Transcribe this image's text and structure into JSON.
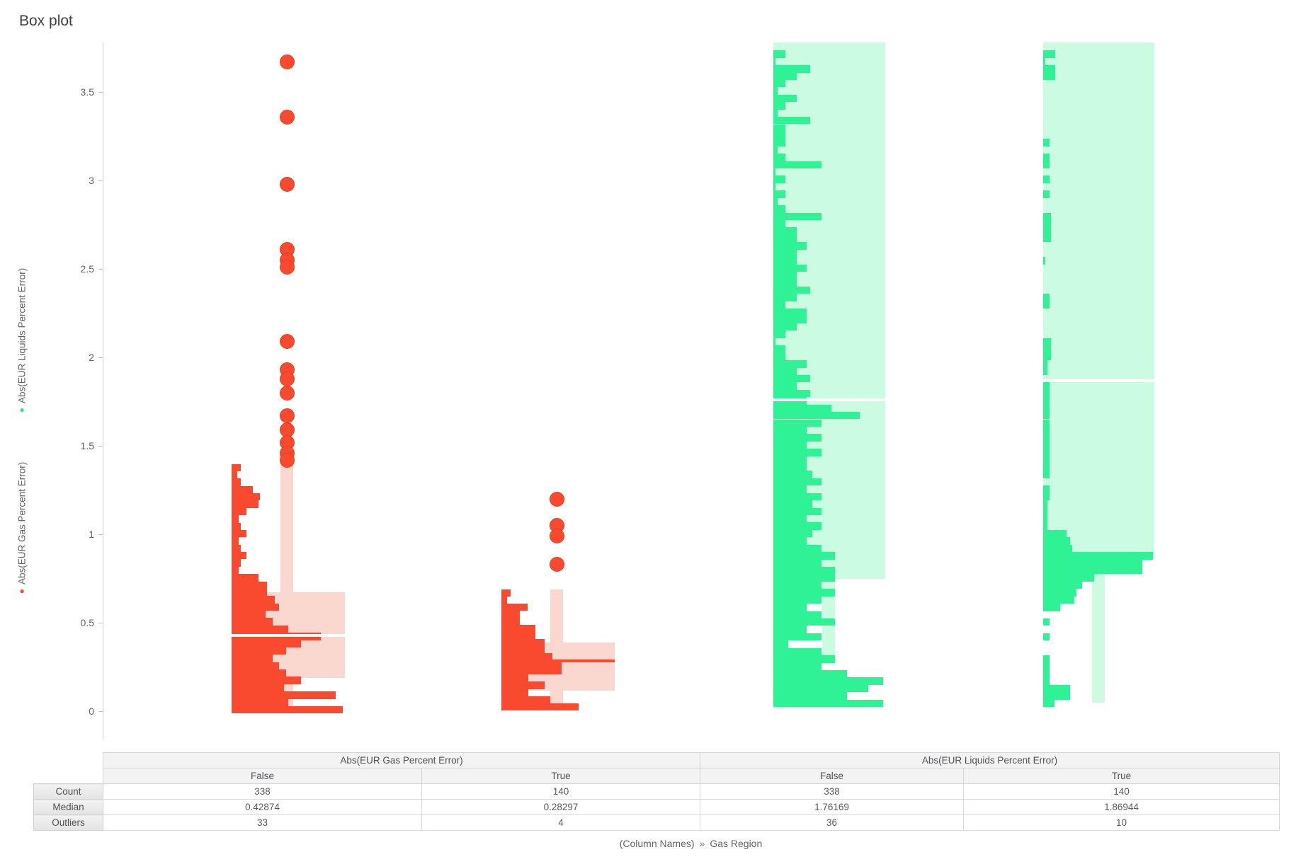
{
  "title": "Box plot",
  "y_axis": {
    "series_labels": [
      {
        "label": "Abs(EUR Liquids Percent Error)",
        "dot_color": "#2ee88a"
      },
      {
        "label": "Abs(EUR Gas Percent Error)",
        "dot_color": "#f94a2f"
      }
    ],
    "ticks": [
      {
        "label": "3.5",
        "value": 3.5
      },
      {
        "label": "3",
        "value": 3
      },
      {
        "label": "2.5",
        "value": 2.5
      },
      {
        "label": "2",
        "value": 2
      },
      {
        "label": "1.5",
        "value": 1.5
      },
      {
        "label": "1",
        "value": 1
      },
      {
        "label": "0.5",
        "value": 0.5
      },
      {
        "label": "0",
        "value": 0
      }
    ]
  },
  "x_axis": {
    "dimension": "(Column Names)",
    "separator": "»",
    "value": "Gas Region"
  },
  "colors": {
    "gas_solid": "#f94a2f",
    "gas_light": "#fad8d0",
    "gas_outline": "#e0401f",
    "liquids_solid": "#2ef293",
    "liquids_light": "#cbfce1",
    "median_white": "#ffffff"
  },
  "chart_data": {
    "type": "boxplot",
    "ylim": [
      0,
      3.78
    ],
    "grid": false,
    "groups": [
      {
        "variable": "Abs(EUR Gas Percent Error)",
        "category": "False",
        "color": "gas",
        "count": 338,
        "median": 0.42874,
        "outlier_count": 33,
        "box": {
          "q1": 0.19,
          "q3": 0.672,
          "whisker_high": 1.43,
          "whisker_low": 0.01
        },
        "median_style": "white",
        "visible_outliers": [
          3.67,
          3.36,
          2.98,
          2.61,
          2.55,
          2.51,
          2.09,
          1.93,
          1.88,
          1.8,
          1.67,
          1.59,
          1.52,
          1.46,
          1.42
        ],
        "hist": {
          "top": 1.398,
          "pitch": 0.0415,
          "lengths": [
            0.08,
            0.05,
            0.08,
            0.19,
            0.25,
            0.24,
            0.13,
            0.06,
            0.08,
            0.13,
            0.06,
            0.08,
            0.13,
            0.08,
            0.06,
            0.24,
            0.31,
            0.31,
            0.38,
            0.42,
            0.3,
            0.36,
            0.5,
            0.79,
            0.61,
            0.48,
            0.36,
            0.42,
            0.48,
            0.61,
            0.46,
            0.92,
            0.5,
            0.98
          ]
        }
      },
      {
        "variable": "Abs(EUR Gas Percent Error)",
        "category": "True",
        "color": "gas",
        "count": 140,
        "median": 0.28297,
        "outlier_count": 4,
        "box": {
          "q1": 0.115,
          "q3": 0.39,
          "whisker_high": 0.69,
          "whisker_low": 0.03
        },
        "median_style": "solid",
        "visible_outliers": [
          1.2,
          1.05,
          0.99,
          0.83
        ],
        "hist": {
          "top": 0.69,
          "pitch": 0.0403,
          "lengths": [
            0.08,
            0.05,
            0.23,
            0.16,
            0.16,
            0.3,
            0.3,
            0.38,
            0.38,
            0.45,
            0.53,
            0.53,
            0.24,
            0.38,
            0.24,
            0.43,
            0.68
          ]
        }
      },
      {
        "variable": "Abs(EUR Liquids Percent Error)",
        "category": "False",
        "color": "liquids",
        "count": 338,
        "median": 1.76169,
        "outlier_count": 36,
        "box": {
          "q1": 0.748,
          "q3": null,
          "whisker_high": null,
          "whisker_low": 0.31
        },
        "median_style": "white",
        "visible_outliers": [],
        "hist": {
          "top": 3.735,
          "pitch": 0.0417,
          "lengths": [
            0.11,
            0.02,
            0.33,
            0.21,
            0.11,
            0.04,
            0.21,
            0.11,
            0.04,
            0.33,
            0.11,
            0.11,
            0.11,
            0.04,
            0.11,
            0.43,
            0.02,
            0.11,
            0.02,
            0.11,
            0.04,
            0.11,
            0.43,
            0.11,
            0.21,
            0.21,
            0.3,
            0.21,
            0.21,
            0.3,
            0.21,
            0.21,
            0.33,
            0.21,
            0.11,
            0.3,
            0.3,
            0.21,
            0.11,
            0.02,
            0.11,
            0.11,
            0.3,
            0.21,
            0.33,
            0.21,
            0.33,
            0.3,
            0.52,
            0.77,
            0.43,
            0.3,
            0.43,
            0.3,
            0.43,
            0.3,
            0.3,
            0.35,
            0.43,
            0.3,
            0.43,
            0.35,
            0.43,
            0.3,
            0.43,
            0.35,
            0.3,
            0.43,
            0.55,
            0.43,
            0.55,
            0.55,
            0.43,
            0.55,
            0.43,
            0.3,
            0.43,
            0.55,
            0.3,
            0.43,
            0.13,
            0.43,
            0.55,
            0.43,
            0.66,
            0.98,
            0.85,
            0.66,
            0.98
          ]
        }
      },
      {
        "variable": "Abs(EUR Liquids Percent Error)",
        "category": "True",
        "color": "liquids",
        "count": 140,
        "median": 1.86944,
        "outlier_count": 10,
        "box": {
          "q1": 0.872,
          "q3": null,
          "whisker_high": null,
          "whisker_low": 0.05
        },
        "median_style": "white",
        "visible_outliers": [],
        "hist": {
          "top": 3.735,
          "pitch": 0.0417,
          "lengths": [
            0.11,
            0.02,
            0.11,
            0.11,
            0,
            0,
            0,
            0,
            0,
            0,
            0,
            0,
            0.06,
            0,
            0.06,
            0.06,
            0,
            0.06,
            0,
            0.06,
            0,
            0,
            0.07,
            0.07,
            0.07,
            0.07,
            0,
            0,
            0.02,
            0,
            0,
            0,
            0,
            0.06,
            0.06,
            0,
            0,
            0,
            0,
            0.07,
            0.07,
            0.07,
            0.04,
            0.04,
            0,
            0.06,
            0.06,
            0.055,
            0.055,
            0.055,
            0.055,
            0.055,
            0.055,
            0.055,
            0.055,
            0.055,
            0.055,
            0.055,
            0,
            0.06,
            0.06,
            0.04,
            0.04,
            0.04,
            0.04,
            0.21,
            0.24,
            0.26,
            0.99,
            0.89,
            0.89,
            0.46,
            0.35,
            0.3,
            0.28,
            0.15,
            0,
            0.06,
            0,
            0.06,
            0,
            0,
            0.06,
            0.06,
            0.06,
            0.06,
            0.24,
            0.24,
            0.1
          ]
        }
      }
    ]
  },
  "summary_table": {
    "row_labels": [
      "Count",
      "Median",
      "Outliers"
    ],
    "sections": [
      {
        "header": "Abs(EUR Gas Percent Error)",
        "columns": [
          {
            "header": "False",
            "values": [
              "338",
              "0.42874",
              "33"
            ]
          },
          {
            "header": "True",
            "values": [
              "140",
              "0.28297",
              "4"
            ]
          }
        ]
      },
      {
        "header": "Abs(EUR Liquids Percent Error)",
        "columns": [
          {
            "header": "False",
            "values": [
              "338",
              "1.76169",
              "36"
            ]
          },
          {
            "header": "True",
            "values": [
              "140",
              "1.86944",
              "10"
            ]
          }
        ]
      }
    ]
  }
}
